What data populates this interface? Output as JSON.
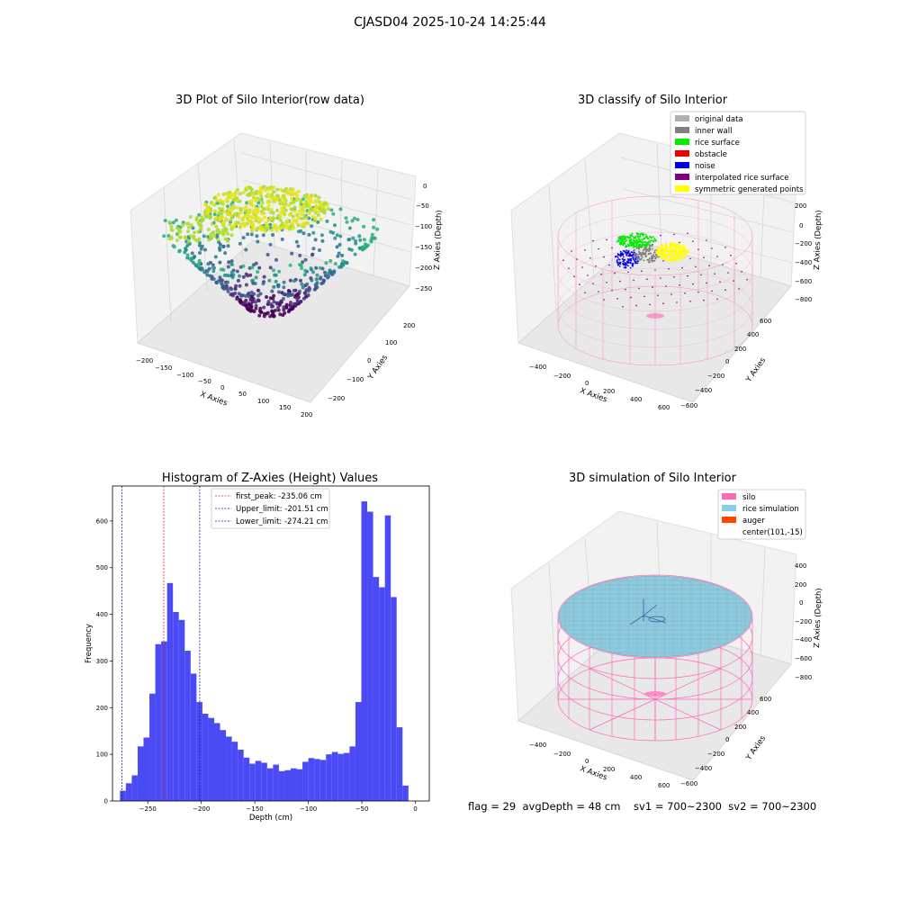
{
  "page": {
    "suptitle": "CJASD04 2025-10-24 14:25:44",
    "footer": "flag = 29  avgDepth = 48 cm    sv1 = 700~2300  sv2 = 700~2300"
  },
  "colors": {
    "histogram_bar": "#4b4bf5",
    "peak_line": "#e02020",
    "limit_line": "#1a1aa0",
    "silo": "#ff69b4",
    "rice_simulation": "#87ceeb",
    "auger": "#ff4500",
    "rice_surface": "#00ee00",
    "noise": "#0000ee",
    "inner_wall": "#808080",
    "original_data": "#b0b0b0",
    "obstacle": "#ee0000",
    "interpolated_rice_surface": "#800080",
    "symmetric_generated_points": "#ffff00"
  },
  "chart_data": [
    {
      "type": "scatter",
      "title": "3D Plot of Silo Interior(row data)",
      "xlabel": "X Axies",
      "ylabel": "Y Axies",
      "zlabel": "Z Axies (Depth)",
      "xticks": [
        "−200",
        "−150",
        "−100",
        "−50",
        "0",
        "50",
        "100",
        "150",
        "200"
      ],
      "yticks": [
        "200",
        "100",
        "0",
        "−100",
        "−200"
      ],
      "zticks": [
        "0",
        "−50",
        "−100",
        "−150",
        "−200",
        "−250"
      ],
      "xlim": [
        -200,
        200
      ],
      "ylim": [
        -200,
        200
      ],
      "zlim": [
        -280,
        0
      ],
      "colormap": "viridis"
    },
    {
      "type": "scatter",
      "title": "3D classify of Silo Interior",
      "xlabel": "X Axies",
      "ylabel": "Y Axies",
      "zlabel": "Z Axies (Depth)",
      "xticks": [
        "−400",
        "−200",
        "0",
        "200",
        "400",
        "600"
      ],
      "yticks": [
        "600",
        "400",
        "200",
        "0",
        "−200",
        "−400",
        "−600"
      ],
      "zticks": [
        "200",
        "0",
        "−200",
        "−400",
        "−600",
        "−800"
      ],
      "legend": [
        "original data",
        "inner wall",
        "rice surface",
        "obstacle",
        "noise",
        "interpolated rice surface",
        "symmetric generated points"
      ],
      "legend_colors": [
        "#b0b0b0",
        "#808080",
        "#00ee00",
        "#ee0000",
        "#0000ee",
        "#800080",
        "#ffff00"
      ],
      "legend_position": "top-right"
    },
    {
      "type": "bar",
      "title": "Histogram of Z-Axies (Height) Values",
      "xlabel": "Depth (cm)",
      "ylabel": "Frequency",
      "xlim": [
        -283,
        13
      ],
      "ylim": [
        0,
        675
      ],
      "xticks": [
        -250,
        -200,
        -150,
        -100,
        -50,
        0
      ],
      "xtick_labels": [
        "−250",
        "−200",
        "−150",
        "−100",
        "−50",
        "0"
      ],
      "yticks": [
        0,
        100,
        200,
        300,
        400,
        500,
        600
      ],
      "bin_start": -276,
      "bin_width": 5.5,
      "values": [
        22,
        38,
        55,
        117,
        136,
        230,
        336,
        342,
        467,
        405,
        388,
        322,
        273,
        212,
        187,
        178,
        167,
        152,
        138,
        127,
        110,
        93,
        80,
        86,
        82,
        70,
        78,
        64,
        66,
        70,
        68,
        84,
        92,
        90,
        88,
        100,
        105,
        101,
        103,
        117,
        212,
        642,
        620,
        480,
        458,
        612,
        437,
        158,
        33
      ],
      "vlines": [
        {
          "label": "first_peak: -235.06 cm",
          "x": -235.06,
          "style": "red-dashed"
        },
        {
          "label": "Upper_limit: -201.51 cm",
          "x": -201.51,
          "style": "navy-dashed"
        },
        {
          "label": "Lower_limit: -274.21 cm",
          "x": -274.21,
          "style": "navy-dashed"
        }
      ],
      "legend_position": "top-center"
    },
    {
      "type": "scatter",
      "title": "3D simulation of Silo Interior",
      "xlabel": "X Axies",
      "ylabel": "Y Axies",
      "zlabel": "Z Axies (Depth)",
      "xticks": [
        "−400",
        "−200",
        "0",
        "200",
        "400",
        "600"
      ],
      "yticks": [
        "600",
        "400",
        "200",
        "0",
        "−200",
        "−400",
        "−600"
      ],
      "zticks": [
        "400",
        "200",
        "0",
        "−200",
        "−400",
        "−600",
        "−800"
      ],
      "legend": [
        "silo",
        "rice simulation",
        "auger",
        "center(101,-15)"
      ],
      "legend_colors": [
        "#ff69b4",
        "#87ceeb",
        "#ff4500",
        ""
      ],
      "legend_position": "top-right"
    }
  ]
}
